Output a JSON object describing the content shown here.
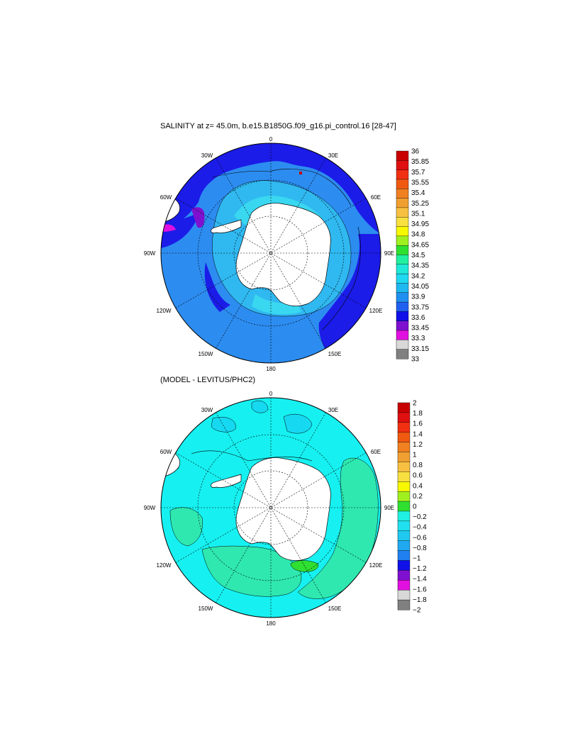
{
  "panel1": {
    "title": "SALINITY at z=  45.0m, b.e15.B1850G.f09_g16.pi_control.16 [28-47]",
    "longitude_labels": [
      "0",
      "30E",
      "60E",
      "90E",
      "120E",
      "150E",
      "180",
      "150W",
      "120W",
      "90W",
      "60W",
      "30W"
    ],
    "colorbar": {
      "labels": [
        "36",
        "35.85",
        "35.7",
        "35.55",
        "35.4",
        "35.25",
        "35.1",
        "34.95",
        "34.8",
        "34.65",
        "34.5",
        "34.35",
        "34.2",
        "34.05",
        "33.9",
        "33.75",
        "33.6",
        "33.45",
        "33.3",
        "33.15",
        "33"
      ],
      "colors": [
        "#c80000",
        "#e01010",
        "#f03010",
        "#f05a10",
        "#f08020",
        "#f0a030",
        "#f8c040",
        "#f8e040",
        "#f8f800",
        "#a0f020",
        "#30e030",
        "#20f0a0",
        "#20e8d8",
        "#20d8f0",
        "#20b8f0",
        "#2090f0",
        "#2060f0",
        "#1010e8",
        "#8010d0",
        "#e010e0",
        "#d8d8d8",
        "#808080"
      ]
    }
  },
  "panel2": {
    "title": "(MODEL - LEVITUS/PHC2)",
    "longitude_labels": [
      "0",
      "30E",
      "60E",
      "90E",
      "120E",
      "150E",
      "180",
      "150W",
      "120W",
      "90W",
      "60W",
      "30W"
    ],
    "colorbar": {
      "labels": [
        "2",
        "1.8",
        "1.6",
        "1.4",
        "1.2",
        "1",
        "0.8",
        "0.6",
        "0.4",
        "0.2",
        "0",
        "−0.2",
        "−0.4",
        "−0.6",
        "−0.8",
        "−1",
        "−1.2",
        "−1.4",
        "−1.6",
        "−1.8",
        "−2"
      ],
      "colors": [
        "#c80000",
        "#e01010",
        "#f03010",
        "#f05a10",
        "#f08020",
        "#f0a030",
        "#f8c040",
        "#f8e040",
        "#f8f800",
        "#a0f020",
        "#30e030",
        "#20f0e0",
        "#20e0f0",
        "#20c8f0",
        "#20a8f0",
        "#2080f0",
        "#1010e8",
        "#8010d0",
        "#e010e0",
        "#d8d8d8",
        "#808080"
      ]
    }
  },
  "colors": {
    "land": "#ffffff",
    "coastline": "#000000"
  }
}
